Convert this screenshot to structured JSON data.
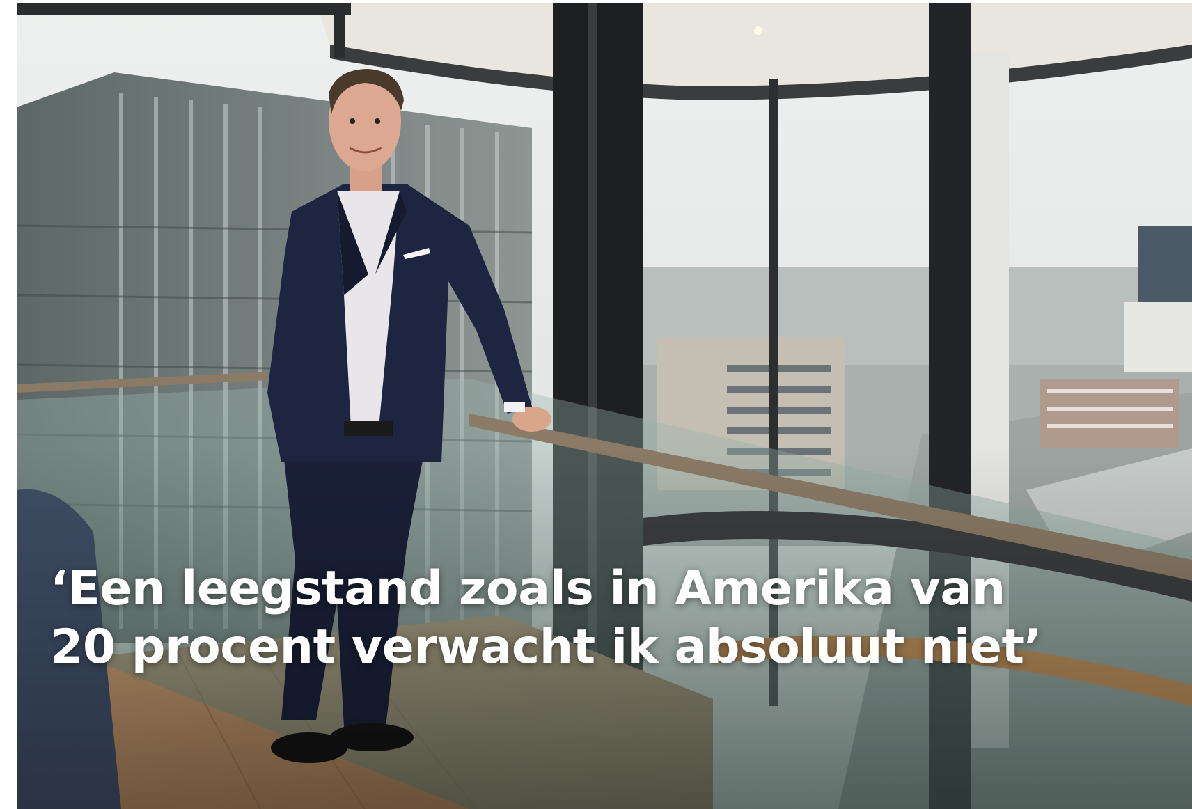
{
  "headline": {
    "line1": "‘Een leegstand zoals in Amerika van",
    "line2": "20 procent verwacht ik absoluut niet’"
  },
  "photo": {
    "subject": "man-in-suit-icon",
    "colors": {
      "sky": "#e6e9e8",
      "suit": "#1d2540",
      "frame": "#1e1f21",
      "railing": "#8a7a66",
      "floor": "#b8916a"
    }
  }
}
